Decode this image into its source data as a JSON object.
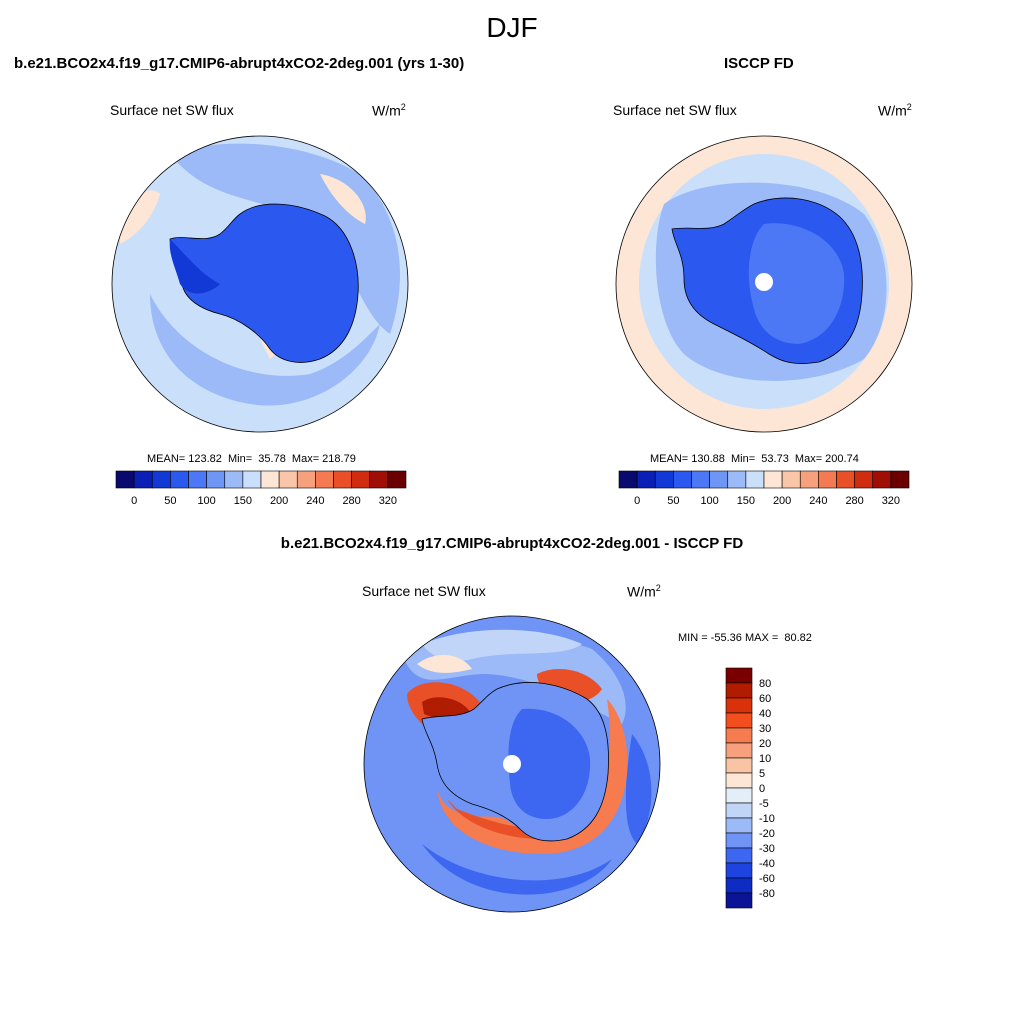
{
  "figure": {
    "title": "DJF"
  },
  "panels": {
    "model": {
      "title": "b.e21.BCO2x4.f19_g17.CMIP6-abrupt4xCO2-2deg.001 (yrs 1-30)",
      "variable": "Surface net SW flux",
      "units_base": "W/m",
      "units_exp": "2",
      "stats": "MEAN= 123.82  Min=  35.78  Max= 218.79",
      "stats_values": {
        "mean": 123.82,
        "min": 35.78,
        "max": 218.79
      }
    },
    "obs": {
      "title": "ISCCP FD",
      "variable": "Surface net SW flux",
      "units_base": "W/m",
      "units_exp": "2",
      "stats": "MEAN= 130.88  Min=  53.73  Max= 200.74",
      "stats_values": {
        "mean": 130.88,
        "min": 53.73,
        "max": 200.74
      }
    },
    "diff": {
      "title": "b.e21.BCO2x4.f19_g17.CMIP6-abrupt4xCO2-2deg.001 - ISCCP FD",
      "variable": "Surface net SW flux",
      "units_base": "W/m",
      "units_exp": "2",
      "stats": "MIN = -55.36 MAX =  80.82",
      "stats_values": {
        "min": -55.36,
        "max": 80.82
      }
    }
  },
  "colorbars": {
    "absolute": {
      "levels": [
        "0",
        "25",
        "50",
        "75",
        "100",
        "125",
        "150",
        "175",
        "200",
        "220",
        "240",
        "260",
        "280",
        "300",
        "320"
      ],
      "shown_labels": [
        "0",
        "50",
        "100",
        "150",
        "200",
        "240",
        "280",
        "320"
      ],
      "colors": [
        "#0a0a6e",
        "#0a1fb4",
        "#1238d6",
        "#2b58ef",
        "#4c78f5",
        "#7096f5",
        "#9cbaf7",
        "#cadff9",
        "#fde6d5",
        "#f9c6a8",
        "#f7a07d",
        "#f47a52",
        "#ea5028",
        "#cf2c10",
        "#a00f05",
        "#6b0000"
      ]
    },
    "difference": {
      "levels": [
        "80",
        "60",
        "40",
        "30",
        "20",
        "10",
        "5",
        "0",
        "-5",
        "-10",
        "-20",
        "-30",
        "-40",
        "-60",
        "-80"
      ],
      "colors": [
        "#7a0000",
        "#b01c00",
        "#d9320b",
        "#f24e1e",
        "#f67b4f",
        "#f7a07d",
        "#f8c4a4",
        "#fde6d5",
        "#e3eef9",
        "#c0d5f8",
        "#9cbaf7",
        "#6f94f5",
        "#3d67f0",
        "#1e44e0",
        "#0e2bc4",
        "#0a1496"
      ]
    }
  },
  "map_colors": {
    "ocean_light": "#cadff9",
    "ocean_mid": "#9cbaf7",
    "ocean_deep": "#7096f5",
    "land_low": "#2b58ef",
    "land_mid": "#4c78f5",
    "warm_light": "#fde6d5",
    "warm_mid": "#f7a07d",
    "warm_strong": "#ea5028",
    "warm_max": "#cf2c10"
  }
}
